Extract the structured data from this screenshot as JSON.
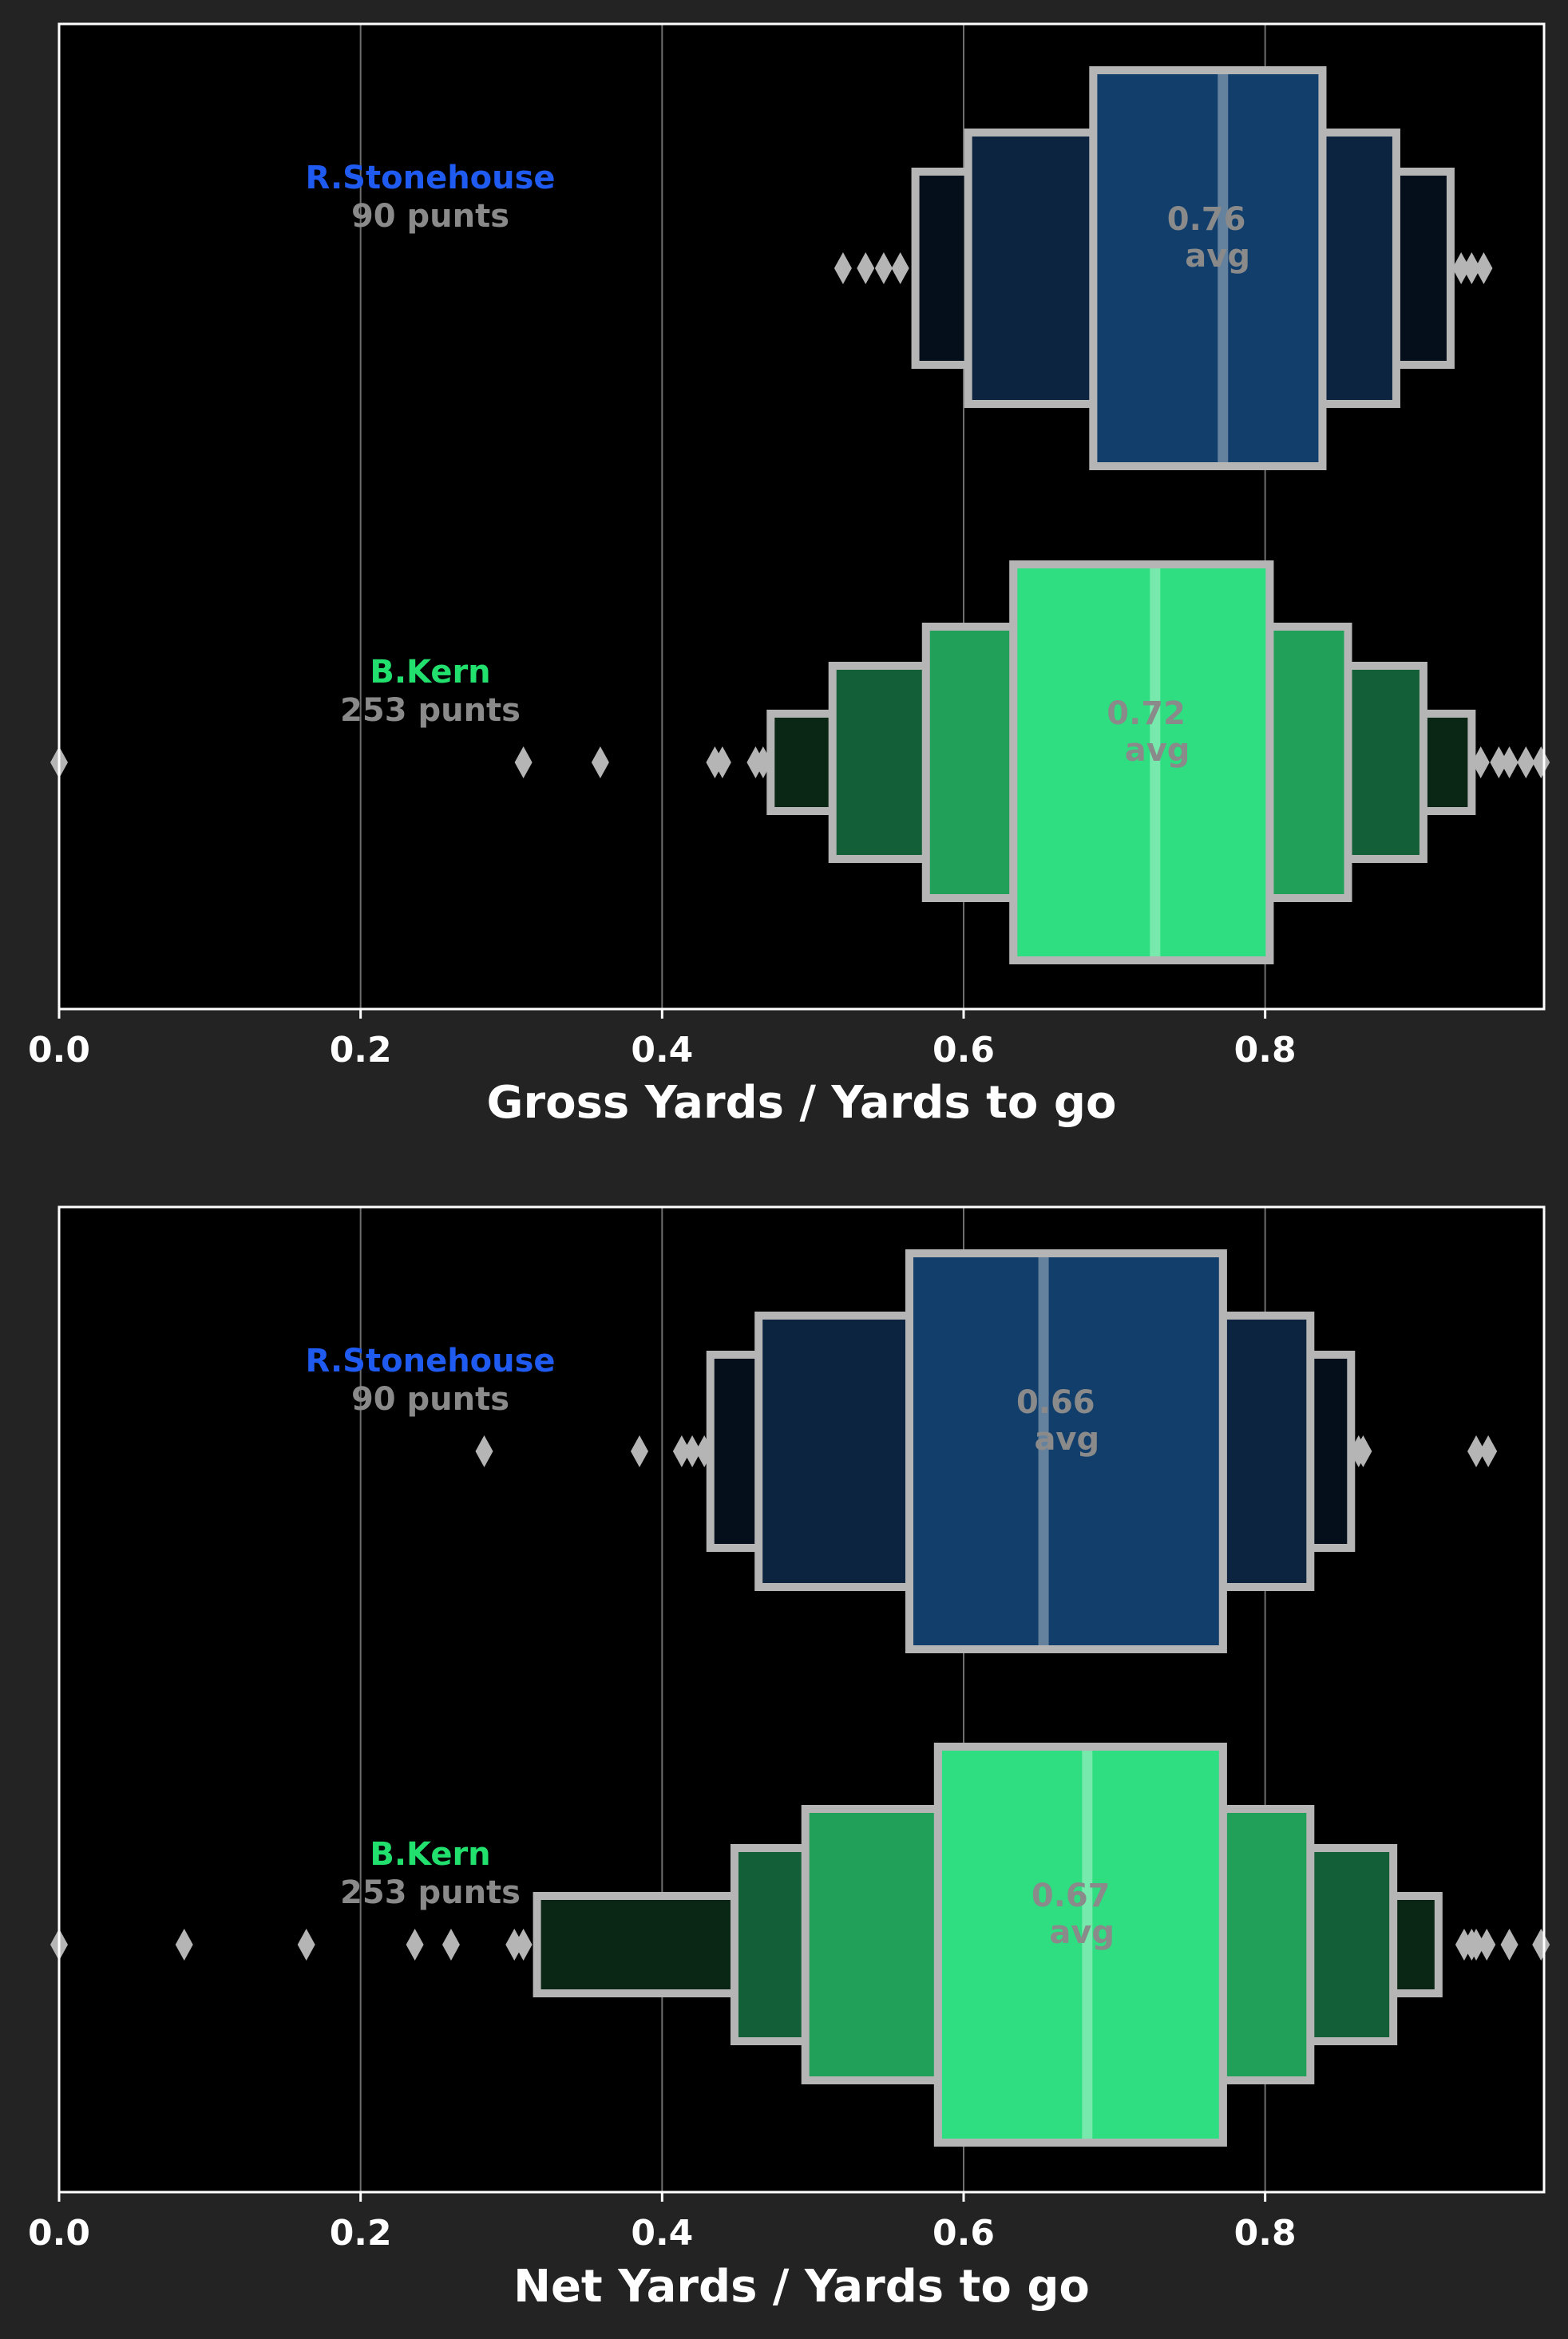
{
  "colors": {
    "figure_bg": "#232323",
    "axes_bg": "#000000",
    "box_edge": "#b5b5b5",
    "grid": "#6e6e6e",
    "text_white": "#ffffff",
    "text_gray": "#8a8a8a"
  },
  "chart_data": [
    {
      "type": "boxen",
      "xlabel": "Gross Yards / Yards to go",
      "xlim": [
        0,
        0.985
      ],
      "xticks": [
        "0.0",
        "0.2",
        "0.4",
        "0.6",
        "0.8"
      ],
      "xtick_values": [
        0,
        0.2,
        0.4,
        0.6,
        0.8
      ],
      "grid": "vertical",
      "series": [
        {
          "name": "R.Stonehouse",
          "count_label": "90 punts",
          "mean": 0.76,
          "avg_value": "0.76",
          "avg_word": "avg",
          "median": 0.772,
          "color_shades": [
            "#123e6b",
            "#0c2440",
            "#050f1c"
          ],
          "name_color": "#1f5bf0",
          "boxes": [
            [
              0.686,
              0.838
            ],
            [
              0.603,
              0.887
            ],
            [
              0.568,
              0.923
            ]
          ],
          "outliers": [
            0.52,
            0.535,
            0.547,
            0.558,
            0.93,
            0.937,
            0.945
          ]
        },
        {
          "name": "B.Kern",
          "count_label": "253 punts",
          "mean": 0.72,
          "avg_value": "0.72",
          "avg_word": "avg",
          "median": 0.727,
          "color_shades": [
            "#2ede80",
            "#20a058",
            "#135f37",
            "#0a2614"
          ],
          "name_color": "#22e06e",
          "boxes": [
            [
              0.633,
              0.803
            ],
            [
              0.575,
              0.855
            ],
            [
              0.513,
              0.905
            ],
            [
              0.472,
              0.937
            ]
          ],
          "outliers": [
            0.0,
            0.308,
            0.359,
            0.435,
            0.44,
            0.462,
            0.467,
            0.943,
            0.955,
            0.962,
            0.973,
            0.983
          ]
        }
      ]
    },
    {
      "type": "boxen",
      "xlabel": "Net Yards / Yards to go",
      "xlim": [
        0,
        0.985
      ],
      "xticks": [
        "0.0",
        "0.2",
        "0.4",
        "0.6",
        "0.8"
      ],
      "xtick_values": [
        0,
        0.2,
        0.4,
        0.6,
        0.8
      ],
      "grid": "vertical",
      "series": [
        {
          "name": "R.Stonehouse",
          "count_label": "90 punts",
          "mean": 0.66,
          "avg_value": "0.66",
          "avg_word": "avg",
          "median": 0.653,
          "color_shades": [
            "#123e6b",
            "#0c2440",
            "#050f1c"
          ],
          "name_color": "#1f5bf0",
          "boxes": [
            [
              0.564,
              0.772
            ],
            [
              0.464,
              0.83
            ],
            [
              0.432,
              0.857
            ]
          ],
          "outliers": [
            0.282,
            0.385,
            0.413,
            0.42,
            0.428,
            0.862,
            0.865,
            0.94,
            0.948
          ]
        },
        {
          "name": "B.Kern",
          "count_label": "253 punts",
          "mean": 0.67,
          "avg_value": "0.67",
          "avg_word": "avg",
          "median": 0.682,
          "color_shades": [
            "#2ede80",
            "#20a058",
            "#135f37",
            "#0a2614"
          ],
          "name_color": "#22e06e",
          "boxes": [
            [
              0.583,
              0.772
            ],
            [
              0.495,
              0.83
            ],
            [
              0.448,
              0.885
            ],
            [
              0.317,
              0.915
            ]
          ],
          "outliers": [
            0.0,
            0.083,
            0.164,
            0.236,
            0.26,
            0.302,
            0.308,
            0.932,
            0.937,
            0.94,
            0.947,
            0.962,
            0.983
          ]
        }
      ]
    }
  ]
}
